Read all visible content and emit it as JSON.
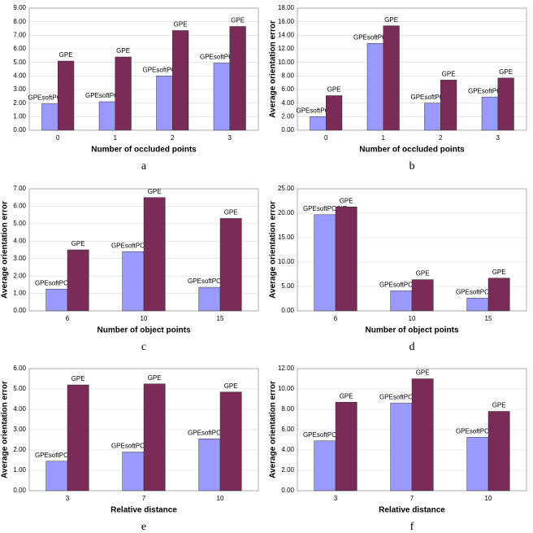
{
  "chart_data": [
    {
      "type": "bar",
      "caption": "a",
      "x_label": "Number of occluded points",
      "categories": [
        "0",
        "1",
        "2",
        "3"
      ],
      "series": [
        {
          "name": "GPEsoftPOSIT",
          "color": "#9999ff",
          "values": [
            1.95,
            2.1,
            4.0,
            4.95
          ]
        },
        {
          "name": "GPE",
          "color": "#7b2b57",
          "values": [
            5.1,
            5.4,
            7.35,
            7.65
          ]
        }
      ],
      "ylim": [
        0,
        9
      ],
      "yticks": [
        {
          "value": 0,
          "label": "0.00"
        },
        {
          "value": 1,
          "label": "1.00"
        },
        {
          "value": 2,
          "label": "2.00"
        },
        {
          "value": 3,
          "label": "3.00"
        },
        {
          "value": 4,
          "label": "4.00"
        },
        {
          "value": 5,
          "label": "5.00"
        },
        {
          "value": 6,
          "label": "6.00"
        },
        {
          "value": 7,
          "label": "7.00"
        },
        {
          "value": 8,
          "label": "8.00"
        },
        {
          "value": 9,
          "label": "9.00"
        }
      ]
    },
    {
      "type": "bar",
      "caption": "b",
      "x_label": "Number of occluded points",
      "y_label": "Average orientation error",
      "categories": [
        "0",
        "1",
        "2",
        "3"
      ],
      "series": [
        {
          "name": "GPEsoftPOSIT",
          "color": "#9999ff",
          "values": [
            2.0,
            12.8,
            4.0,
            4.9
          ]
        },
        {
          "name": "GPE",
          "color": "#7b2b57",
          "values": [
            5.1,
            15.4,
            7.4,
            7.7
          ]
        }
      ],
      "ylim": [
        0,
        18
      ],
      "yticks": [
        {
          "value": 0,
          "label": "0.00"
        },
        {
          "value": 2,
          "label": "2.00"
        },
        {
          "value": 4,
          "label": "4.00"
        },
        {
          "value": 6,
          "label": "6.00"
        },
        {
          "value": 8,
          "label": "8.00"
        },
        {
          "value": 10,
          "label": "10.00"
        },
        {
          "value": 12,
          "label": "12.00"
        },
        {
          "value": 14,
          "label": "14.00"
        },
        {
          "value": 16,
          "label": "16.00"
        },
        {
          "value": 18,
          "label": "18.00"
        }
      ]
    },
    {
      "type": "bar",
      "caption": "c",
      "x_label": "Number of object points",
      "y_label": "Average orientation error",
      "categories": [
        "6",
        "10",
        "15"
      ],
      "series": [
        {
          "name": "GPEsoftPOSIT",
          "color": "#9999ff",
          "values": [
            1.25,
            3.4,
            1.35
          ]
        },
        {
          "name": "GPE",
          "color": "#7b2b57",
          "values": [
            3.5,
            6.5,
            5.3
          ]
        }
      ],
      "ylim": [
        0,
        7
      ],
      "yticks": [
        {
          "value": 0,
          "label": "0.00"
        },
        {
          "value": 1,
          "label": "1.00"
        },
        {
          "value": 2,
          "label": "2.00"
        },
        {
          "value": 3,
          "label": "3.00"
        },
        {
          "value": 4,
          "label": "4.00"
        },
        {
          "value": 5,
          "label": "5.00"
        },
        {
          "value": 6,
          "label": "6.00"
        },
        {
          "value": 7,
          "label": "7.00"
        }
      ]
    },
    {
      "type": "bar",
      "caption": "d",
      "x_label": "Number of object points",
      "y_label": "Average orientation error",
      "categories": [
        "6",
        "10",
        "15"
      ],
      "series": [
        {
          "name": "GPEsoftPOSIT",
          "color": "#9999ff",
          "values": [
            19.7,
            4.1,
            2.6
          ]
        },
        {
          "name": "GPE",
          "color": "#7b2b57",
          "values": [
            21.3,
            6.4,
            6.7
          ]
        }
      ],
      "ylim": [
        0,
        25
      ],
      "yticks": [
        {
          "value": 0,
          "label": "0.00"
        },
        {
          "value": 5,
          "label": "5.00"
        },
        {
          "value": 10,
          "label": "10.00"
        },
        {
          "value": 15,
          "label": "15.00"
        },
        {
          "value": 20,
          "label": "20.00"
        },
        {
          "value": 25,
          "label": "25.00"
        }
      ]
    },
    {
      "type": "bar",
      "caption": "e",
      "x_label": "Relative distance",
      "y_label": "Average orientation error",
      "categories": [
        "3",
        "7",
        "10"
      ],
      "series": [
        {
          "name": "GPEsoftPOSIT",
          "color": "#9999ff",
          "values": [
            1.45,
            1.9,
            2.55
          ]
        },
        {
          "name": "GPE",
          "color": "#7b2b57",
          "values": [
            5.2,
            5.25,
            4.85
          ]
        }
      ],
      "ylim": [
        0,
        6
      ],
      "yticks": [
        {
          "value": 0,
          "label": "0.00"
        },
        {
          "value": 1,
          "label": "1.00"
        },
        {
          "value": 2,
          "label": "2.00"
        },
        {
          "value": 3,
          "label": "3.00"
        },
        {
          "value": 4,
          "label": "4.00"
        },
        {
          "value": 5,
          "label": "5.00"
        },
        {
          "value": 6,
          "label": "6.00"
        }
      ]
    },
    {
      "type": "bar",
      "caption": "f",
      "x_label": "Relative distance",
      "y_label": "Average orientation error",
      "categories": [
        "3",
        "7",
        "10"
      ],
      "series": [
        {
          "name": "GPEsoftPOSIT",
          "color": "#9999ff",
          "values": [
            4.9,
            8.6,
            5.25
          ]
        },
        {
          "name": "GPE",
          "color": "#7b2b57",
          "values": [
            8.7,
            11.0,
            7.8
          ]
        }
      ],
      "ylim": [
        0,
        12
      ],
      "yticks": [
        {
          "value": 0,
          "label": "0.00"
        },
        {
          "value": 2,
          "label": "2.00"
        },
        {
          "value": 4,
          "label": "4.00"
        },
        {
          "value": 6,
          "label": "6.00"
        },
        {
          "value": 8,
          "label": "8.00"
        },
        {
          "value": 10,
          "label": "10.00"
        },
        {
          "value": 12,
          "label": "12.00"
        }
      ]
    }
  ]
}
